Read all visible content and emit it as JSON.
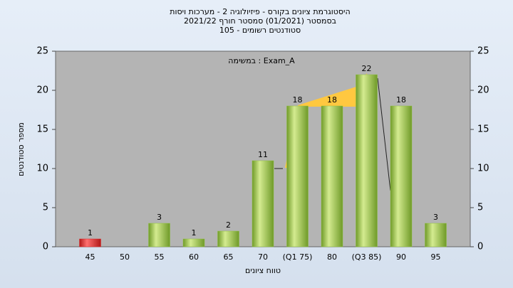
{
  "chart_data": {
    "type": "bar",
    "title": [
      "היסטוגרמת ציונים בקורס - פיזיולוגיה 2 - מערכות ויסות",
      "בסמסטר (01/2021) סמסטר חורף 2021/22",
      "סטודנטים רשומים - 105"
    ],
    "annotation": "במשימה : Exam_A",
    "x_label": "טווח ציונים",
    "y_label": "מספר סטודנטים",
    "categories": [
      "45",
      "50",
      "55",
      "60",
      "65",
      "70",
      "(Q1 75)",
      "80",
      "(Q3 85)",
      "90",
      "95"
    ],
    "values": [
      1,
      0,
      3,
      1,
      2,
      11,
      18,
      18,
      22,
      18,
      3
    ],
    "colors": [
      "#e02828",
      "#8fc040",
      "#8fc040",
      "#8fc040",
      "#8fc040",
      "#8fc040",
      "#8fc040",
      "#8fc040",
      "#8fc040",
      "#8fc040",
      "#8fc040"
    ],
    "ylim": [
      0,
      25
    ],
    "yticks": [
      0,
      5,
      10,
      15,
      20,
      25
    ],
    "y2lim": [
      0,
      25
    ],
    "y2ticks": [
      0,
      5,
      10,
      15,
      20,
      25
    ],
    "grid": false
  }
}
